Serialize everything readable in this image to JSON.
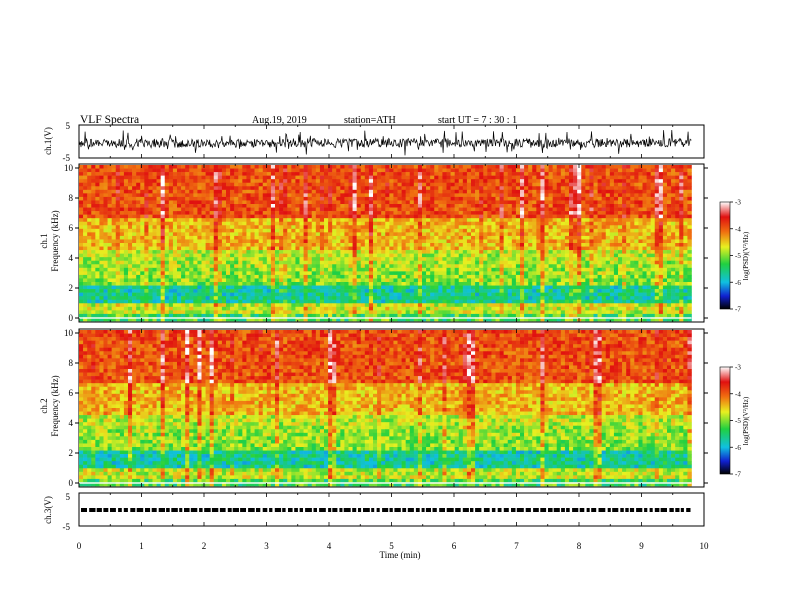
{
  "header": {
    "title": "VLF  Spectra",
    "date": "Aug.19, 2019",
    "station": "station=ATH",
    "start": "start  UT  =   7  : 30 : 1"
  },
  "colors": {
    "spectrum_low": "#000000",
    "spectrum_mid": "#20c040",
    "spectrum_high": "#e02010",
    "spectrum_top": "#ffffff"
  },
  "chart_data": [
    {
      "type": "line",
      "panel": "ch1-waveform",
      "ylabel": "ch.1(V)",
      "ylim": [
        -5,
        5
      ],
      "y_ticks": [
        "5",
        "-5"
      ],
      "xlim": [
        0,
        10
      ],
      "description_values": "noisy waveform centered near -1 V spanning 0 to ~9.8 min"
    },
    {
      "type": "heatmap",
      "panel": "ch1-spectrogram",
      "ylabel": "ch.1\nFrequency (kHz)",
      "ylabel_line1": "ch.1",
      "ylabel_line2": "Frequency (kHz)",
      "ylim": [
        0,
        10
      ],
      "y_ticks": [
        "10",
        "8",
        "6",
        "4",
        "2",
        "0"
      ],
      "xlim": [
        0,
        10
      ],
      "colorbar": {
        "label": "log(PSD)(V²/Hz)",
        "range": [
          -7,
          -3
        ],
        "ticks": [
          "-3",
          "-4",
          "-5",
          "-6",
          "-7"
        ]
      }
    },
    {
      "type": "heatmap",
      "panel": "ch2-spectrogram",
      "ylabel_line1": "ch.2",
      "ylabel_line2": "Frequency (kHz)",
      "ylim": [
        0,
        10
      ],
      "y_ticks": [
        "10",
        "8",
        "6",
        "4",
        "2",
        "0"
      ],
      "xlim": [
        0,
        10
      ],
      "colorbar": {
        "label": "log(PSD)(V²/Hz)",
        "range": [
          -7,
          -3
        ],
        "ticks": [
          "-3",
          "-4",
          "-5",
          "-6",
          "-7"
        ]
      }
    },
    {
      "type": "line",
      "panel": "ch3-waveform",
      "ylabel": "ch.3(V)",
      "ylim": [
        -5,
        5
      ],
      "y_ticks": [
        "5",
        "-5"
      ],
      "xlim": [
        0,
        10
      ],
      "description_values": "pulse train near 0 V"
    }
  ],
  "x_axis": {
    "label": "Time  (min)",
    "ticks": [
      "0",
      "1",
      "2",
      "3",
      "4",
      "5",
      "6",
      "7",
      "8",
      "9",
      "10"
    ]
  }
}
